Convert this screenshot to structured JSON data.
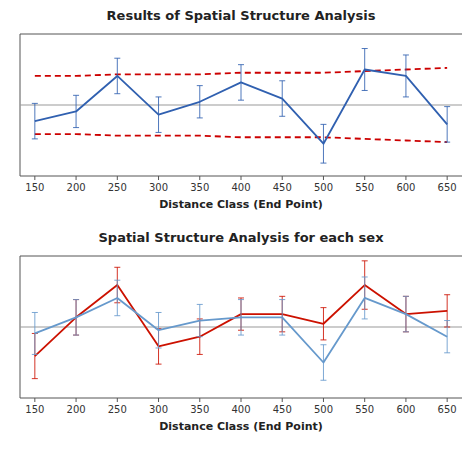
{
  "chart_data": [
    {
      "type": "line",
      "title": "Results of Spatial Structure Analysis",
      "x_label": "Distance Class (End Point)",
      "x": [
        150,
        200,
        250,
        300,
        350,
        400,
        450,
        500,
        550,
        600,
        650
      ],
      "xlim": [
        132,
        668
      ],
      "xticks": [
        150,
        200,
        250,
        300,
        350,
        400,
        450,
        500,
        550,
        600,
        650
      ],
      "ylim": [
        -0.22,
        0.22
      ],
      "tick_labels": "x",
      "grid": false,
      "hline": 0.0,
      "series": [
        {
          "color": "#cc0000",
          "line_style": "dashed",
          "values": [
            0.09,
            0.09,
            0.095,
            0.095,
            0.095,
            0.1,
            0.1,
            0.1,
            0.105,
            0.11,
            0.115
          ]
        },
        {
          "color": "#cc0000",
          "line_style": "dashed",
          "values": [
            -0.09,
            -0.09,
            -0.095,
            -0.095,
            -0.095,
            -0.1,
            -0.1,
            -0.1,
            -0.105,
            -0.11,
            -0.115
          ]
        },
        {
          "color": "#3060b0",
          "line_style": "solid",
          "values": [
            -0.05,
            -0.02,
            0.09,
            -0.03,
            0.01,
            0.07,
            0.02,
            -0.12,
            0.11,
            0.09,
            -0.06
          ],
          "errors": [
            0.055,
            0.05,
            0.055,
            0.055,
            0.05,
            0.055,
            0.055,
            0.06,
            0.065,
            0.065,
            0.055
          ]
        }
      ]
    },
    {
      "type": "line",
      "title": "Spatial Structure Analysis for each sex",
      "x_label": "Distance Class (End Point)",
      "x": [
        150,
        200,
        250,
        300,
        350,
        400,
        450,
        500,
        550,
        600,
        650
      ],
      "xlim": [
        132,
        668
      ],
      "xticks": [
        150,
        200,
        250,
        300,
        350,
        400,
        450,
        500,
        550,
        600,
        650
      ],
      "ylim": [
        -0.22,
        0.22
      ],
      "tick_labels": "x",
      "grid": false,
      "hline": 0.0,
      "series": [
        {
          "color": "#cc1100",
          "line_style": "solid",
          "values": [
            -0.09,
            0.03,
            0.13,
            -0.06,
            -0.03,
            0.04,
            0.04,
            0.01,
            0.13,
            0.04,
            0.05
          ],
          "errors": [
            0.07,
            0.055,
            0.055,
            0.055,
            0.055,
            0.05,
            0.055,
            0.05,
            0.075,
            0.055,
            0.05
          ]
        },
        {
          "color": "#6699cc",
          "line_style": "solid",
          "values": [
            -0.02,
            0.03,
            0.09,
            -0.01,
            0.02,
            0.03,
            0.03,
            -0.11,
            0.09,
            0.04,
            -0.03
          ],
          "errors": [
            0.065,
            0.055,
            0.055,
            0.055,
            0.05,
            0.055,
            0.055,
            0.055,
            0.065,
            0.055,
            0.05
          ]
        }
      ]
    }
  ]
}
